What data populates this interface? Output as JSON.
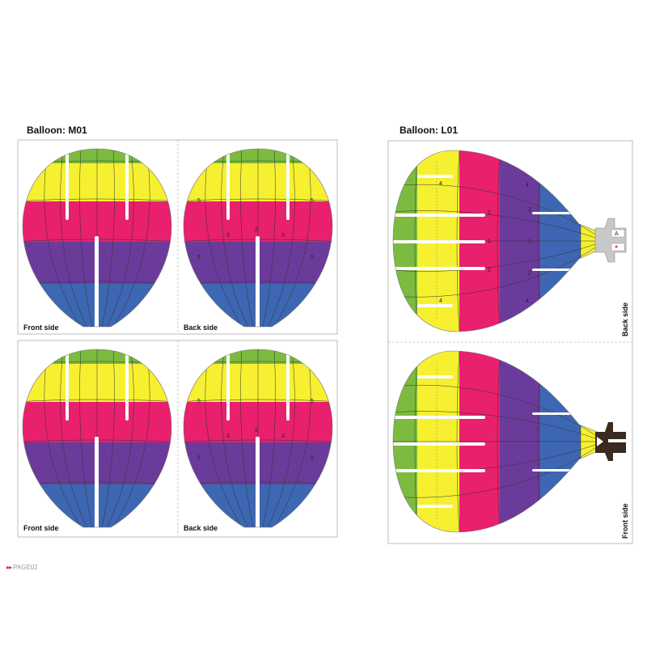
{
  "sections": {
    "m01": {
      "title": "Balloon: M01",
      "panels": [
        {
          "front_label": "Front side",
          "back_label": "Back side"
        },
        {
          "front_label": "Front side",
          "back_label": "Back side"
        }
      ],
      "back_numbers": [
        "5",
        "5",
        "3",
        "2",
        "3",
        "5",
        "5"
      ]
    },
    "l01": {
      "title": "Balloon: L01",
      "back_label": "Back side",
      "front_label": "Front side",
      "back_numbers": [
        "4",
        "4",
        "2",
        "2",
        "1",
        "1",
        "2",
        "2",
        "4",
        "4"
      ],
      "tab_letter": "A"
    }
  },
  "footer": {
    "arrows": "▸▸",
    "page": "PAGE02"
  },
  "colors": {
    "green": "#7cbb3f",
    "yellow": "#f6f031",
    "magenta": "#e8206d",
    "purple": "#6b3b9b",
    "blue": "#3d67b2",
    "outline": "#bdbdbd",
    "gray_tab": "#c8c8c8",
    "dark_tab": "#3a2a20",
    "accent_red": "#e3262b"
  }
}
